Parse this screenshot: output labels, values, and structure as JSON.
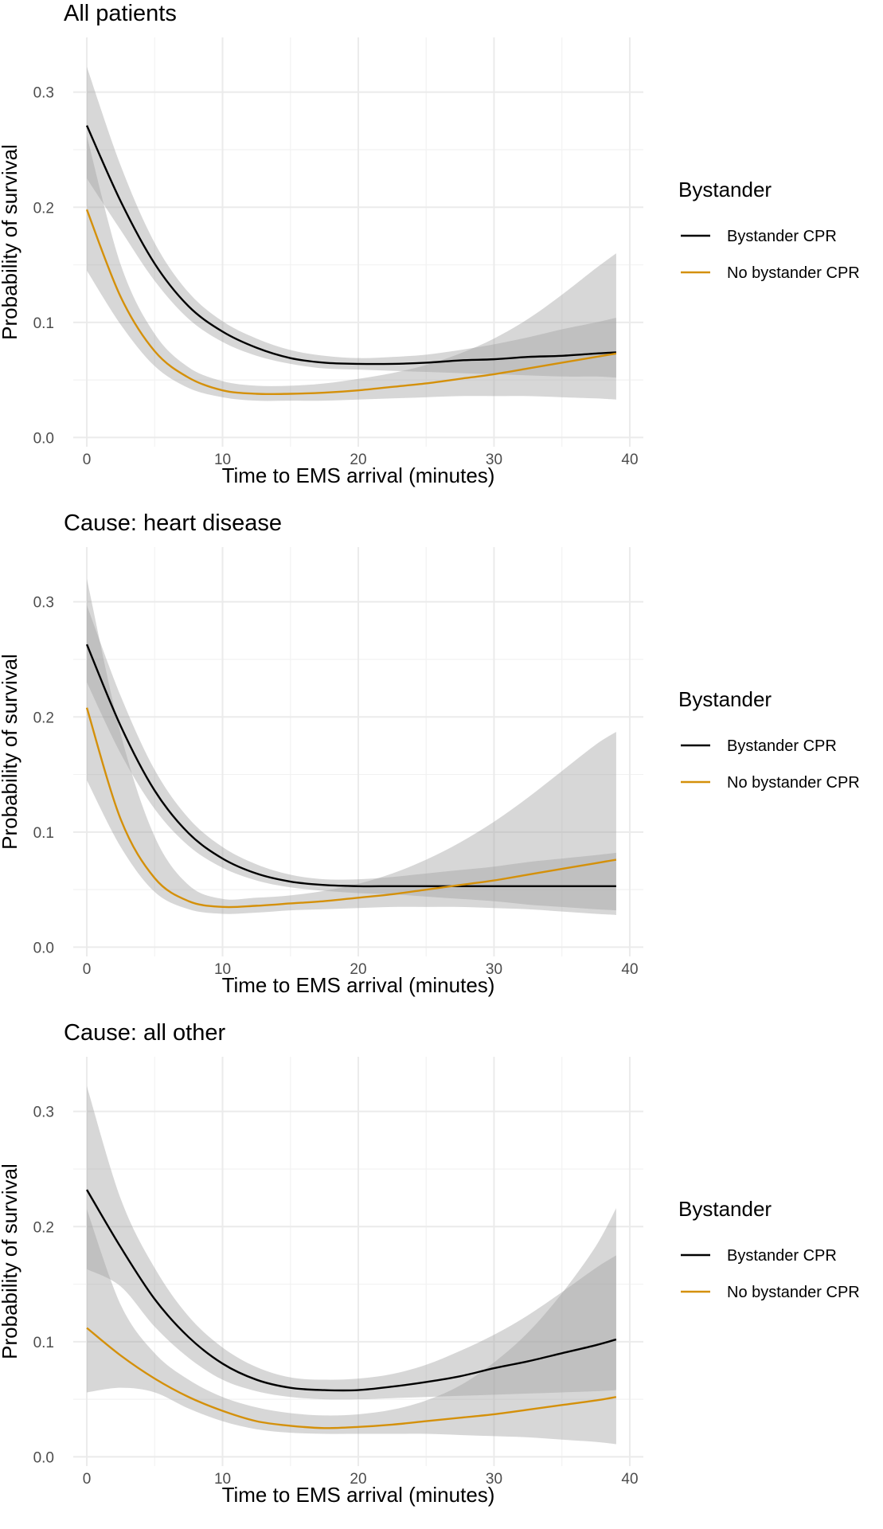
{
  "colors": {
    "bystander": "#000000",
    "no_bystander": "#d4900a",
    "ribbon": "#a0a0a0"
  },
  "chart_data": [
    {
      "type": "line",
      "title": "All patients",
      "xlabel": "Time to EMS arrival (minutes)",
      "ylabel": "Probability of survival",
      "xlim": [
        -1,
        41
      ],
      "ylim": [
        -0.008,
        0.3475
      ],
      "xticks": [
        0,
        10,
        20,
        30,
        40
      ],
      "xtick_labels": [
        "0",
        "10",
        "20",
        "30",
        "40"
      ],
      "yticks": [
        0.0,
        0.1,
        0.2,
        0.3
      ],
      "ytick_labels": [
        "0.0",
        "0.1",
        "0.2",
        "0.3"
      ],
      "grid": true,
      "legend": {
        "title": "Bystander",
        "position": "right"
      },
      "x": [
        0,
        2.5,
        5,
        7.5,
        10,
        12.5,
        15,
        17.5,
        20,
        22.5,
        25,
        27.5,
        30,
        32.5,
        35,
        37.5,
        39
      ],
      "series": [
        {
          "name": "Bystander CPR",
          "color_key": "bystander",
          "values": [
            0.271,
            0.205,
            0.151,
            0.114,
            0.092,
            0.078,
            0.069,
            0.065,
            0.064,
            0.064,
            0.065,
            0.067,
            0.068,
            0.07,
            0.071,
            0.073,
            0.074
          ],
          "lower": [
            0.225,
            0.18,
            0.136,
            0.103,
            0.083,
            0.071,
            0.064,
            0.06,
            0.059,
            0.058,
            0.057,
            0.056,
            0.055,
            0.054,
            0.053,
            0.053,
            0.052
          ],
          "upper": [
            0.322,
            0.236,
            0.169,
            0.126,
            0.101,
            0.086,
            0.076,
            0.071,
            0.069,
            0.07,
            0.072,
            0.076,
            0.081,
            0.087,
            0.094,
            0.1,
            0.104
          ]
        },
        {
          "name": "No bystander CPR",
          "color_key": "no_bystander",
          "values": [
            0.198,
            0.122,
            0.075,
            0.052,
            0.041,
            0.038,
            0.038,
            0.039,
            0.041,
            0.044,
            0.047,
            0.051,
            0.055,
            0.06,
            0.065,
            0.07,
            0.073
          ],
          "lower": [
            0.145,
            0.098,
            0.062,
            0.043,
            0.035,
            0.032,
            0.032,
            0.032,
            0.033,
            0.034,
            0.035,
            0.036,
            0.036,
            0.036,
            0.035,
            0.034,
            0.033
          ],
          "upper": [
            0.262,
            0.15,
            0.09,
            0.061,
            0.049,
            0.045,
            0.045,
            0.047,
            0.051,
            0.056,
            0.063,
            0.073,
            0.086,
            0.103,
            0.124,
            0.147,
            0.16
          ]
        }
      ]
    },
    {
      "type": "line",
      "title": "Cause: heart disease",
      "xlabel": "Time to EMS arrival (minutes)",
      "ylabel": "Probability of survival",
      "xlim": [
        -1,
        41
      ],
      "ylim": [
        -0.008,
        0.3475
      ],
      "xticks": [
        0,
        10,
        20,
        30,
        40
      ],
      "xtick_labels": [
        "0",
        "10",
        "20",
        "30",
        "40"
      ],
      "yticks": [
        0.0,
        0.1,
        0.2,
        0.3
      ],
      "ytick_labels": [
        "0.0",
        "0.1",
        "0.2",
        "0.3"
      ],
      "grid": true,
      "legend": {
        "title": "Bystander",
        "position": "right"
      },
      "x": [
        0,
        2.5,
        5,
        7.5,
        10,
        12.5,
        15,
        17.5,
        20,
        22.5,
        25,
        27.5,
        30,
        32.5,
        35,
        37.5,
        39
      ],
      "series": [
        {
          "name": "Bystander CPR",
          "color_key": "bystander",
          "values": [
            0.263,
            0.192,
            0.136,
            0.099,
            0.077,
            0.064,
            0.057,
            0.054,
            0.053,
            0.053,
            0.053,
            0.053,
            0.053,
            0.053,
            0.053,
            0.053,
            0.053
          ],
          "lower": [
            0.23,
            0.168,
            0.12,
            0.088,
            0.069,
            0.058,
            0.052,
            0.049,
            0.047,
            0.046,
            0.044,
            0.042,
            0.04,
            0.037,
            0.035,
            0.033,
            0.032
          ],
          "upper": [
            0.297,
            0.218,
            0.154,
            0.112,
            0.087,
            0.072,
            0.063,
            0.059,
            0.059,
            0.061,
            0.064,
            0.067,
            0.07,
            0.074,
            0.077,
            0.08,
            0.082
          ]
        },
        {
          "name": "No bystander CPR",
          "color_key": "no_bystander",
          "values": [
            0.208,
            0.111,
            0.06,
            0.04,
            0.035,
            0.036,
            0.038,
            0.04,
            0.043,
            0.046,
            0.05,
            0.054,
            0.058,
            0.063,
            0.068,
            0.073,
            0.076
          ],
          "lower": [
            0.145,
            0.087,
            0.048,
            0.033,
            0.029,
            0.03,
            0.032,
            0.033,
            0.034,
            0.035,
            0.035,
            0.035,
            0.034,
            0.033,
            0.031,
            0.029,
            0.028
          ],
          "upper": [
            0.32,
            0.185,
            0.096,
            0.054,
            0.042,
            0.043,
            0.045,
            0.049,
            0.055,
            0.064,
            0.076,
            0.091,
            0.109,
            0.13,
            0.153,
            0.176,
            0.187
          ]
        }
      ]
    },
    {
      "type": "line",
      "title": "Cause: all other",
      "xlabel": "Time to EMS arrival (minutes)",
      "ylabel": "Probability of survival",
      "xlim": [
        -1,
        41
      ],
      "ylim": [
        -0.008,
        0.3475
      ],
      "xticks": [
        0,
        10,
        20,
        30,
        40
      ],
      "xtick_labels": [
        "0",
        "10",
        "20",
        "30",
        "40"
      ],
      "yticks": [
        0.0,
        0.1,
        0.2,
        0.3
      ],
      "ytick_labels": [
        "0.0",
        "0.1",
        "0.2",
        "0.3"
      ],
      "grid": true,
      "legend": {
        "title": "Bystander",
        "position": "right"
      },
      "x": [
        0,
        2.5,
        5,
        7.5,
        10,
        12.5,
        15,
        17.5,
        20,
        22.5,
        25,
        27.5,
        30,
        32.5,
        35,
        37.5,
        39
      ],
      "series": [
        {
          "name": "Bystander CPR",
          "color_key": "bystander",
          "values": [
            0.232,
            0.182,
            0.137,
            0.104,
            0.081,
            0.067,
            0.06,
            0.058,
            0.058,
            0.061,
            0.065,
            0.07,
            0.077,
            0.083,
            0.09,
            0.097,
            0.102
          ],
          "lower": [
            0.163,
            0.148,
            0.113,
            0.086,
            0.067,
            0.057,
            0.052,
            0.05,
            0.05,
            0.051,
            0.052,
            0.053,
            0.054,
            0.055,
            0.056,
            0.057,
            0.058
          ],
          "upper": [
            0.322,
            0.224,
            0.164,
            0.122,
            0.095,
            0.078,
            0.069,
            0.067,
            0.068,
            0.072,
            0.08,
            0.092,
            0.106,
            0.123,
            0.143,
            0.164,
            0.175
          ]
        },
        {
          "name": "No bystander CPR",
          "color_key": "no_bystander",
          "values": [
            0.112,
            0.088,
            0.068,
            0.052,
            0.04,
            0.031,
            0.027,
            0.025,
            0.026,
            0.028,
            0.031,
            0.034,
            0.037,
            0.041,
            0.045,
            0.049,
            0.052
          ],
          "lower": [
            0.056,
            0.06,
            0.056,
            0.042,
            0.031,
            0.024,
            0.021,
            0.02,
            0.02,
            0.02,
            0.02,
            0.019,
            0.018,
            0.017,
            0.015,
            0.013,
            0.011
          ],
          "upper": [
            0.215,
            0.132,
            0.09,
            0.067,
            0.052,
            0.043,
            0.038,
            0.036,
            0.037,
            0.041,
            0.049,
            0.062,
            0.082,
            0.108,
            0.142,
            0.183,
            0.216
          ]
        }
      ]
    }
  ]
}
